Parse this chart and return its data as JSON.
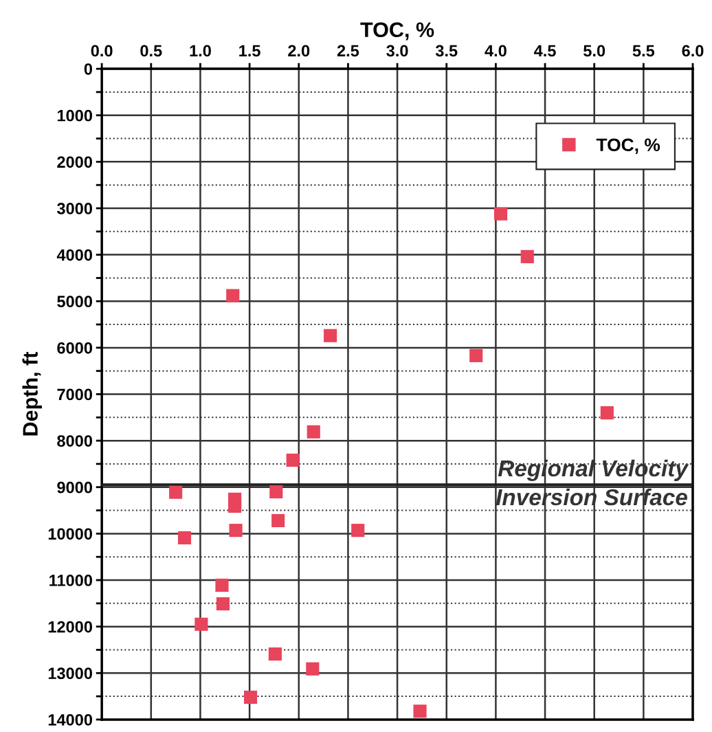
{
  "chart_data": {
    "type": "scatter",
    "xlabel": "TOC, %",
    "ylabel": "Depth, ft",
    "xlim": [
      0,
      6
    ],
    "xticks": [
      {
        "value": 0,
        "label": "0.0"
      },
      {
        "value": 0.5,
        "label": "0.5"
      },
      {
        "value": 1,
        "label": "1.0"
      },
      {
        "value": 1.5,
        "label": "1.5"
      },
      {
        "value": 2,
        "label": "2.0"
      },
      {
        "value": 2.5,
        "label": "2.5"
      },
      {
        "value": 3,
        "label": "3.0"
      },
      {
        "value": 3.5,
        "label": "3.5"
      },
      {
        "value": 4,
        "label": "4.0"
      },
      {
        "value": 4.5,
        "label": "4.5"
      },
      {
        "value": 5,
        "label": "5.0"
      },
      {
        "value": 5.5,
        "label": "5.5"
      },
      {
        "value": 6,
        "label": "6.0"
      }
    ],
    "ylim": [
      14000,
      0
    ],
    "yticks": [
      0,
      {
        "value": 500,
        "label": null
      },
      1000,
      {
        "value": 1500,
        "label": null
      },
      2000,
      {
        "value": 2500,
        "label": null
      },
      3000,
      {
        "value": 3500,
        "label": null
      },
      4000,
      {
        "value": 4500,
        "label": null
      },
      5000,
      {
        "value": 5500,
        "label": null
      },
      6000,
      {
        "value": 6500,
        "label": null
      },
      7000,
      {
        "value": 7500,
        "label": null
      },
      8000,
      {
        "value": 8500,
        "label": null
      },
      9000,
      {
        "value": 9500,
        "label": null
      },
      10000,
      {
        "value": 10500,
        "label": null
      },
      11000,
      {
        "value": 11500,
        "label": null
      },
      12000,
      {
        "value": 12500,
        "label": null
      },
      13000,
      {
        "value": 13500,
        "label": null
      },
      14000
    ],
    "grid": true,
    "legend": "top right",
    "marker": "square",
    "series": [
      {
        "name": "TOC, %",
        "color": "#e8445c",
        "x": [
          4.05,
          4.32,
          1.33,
          2.32,
          3.8,
          5.13,
          2.15,
          1.94,
          0.75,
          1.77,
          1.35,
          1.35,
          1.79,
          1.36,
          2.6,
          0.84,
          1.22,
          1.23,
          1.01,
          1.76,
          2.14,
          1.51,
          3.23
        ],
        "values": [
          3120,
          4040,
          4880,
          5740,
          6170,
          7400,
          7810,
          8420,
          9110,
          9100,
          9260,
          9410,
          9720,
          9930,
          9930,
          10090,
          11110,
          11510,
          11950,
          12590,
          12910,
          13520,
          13820
        ]
      }
    ],
    "ref_lines": [
      {
        "axis": "y",
        "value": 8950,
        "label": "Regional Velocity\nInversion Surface",
        "color": "#222222"
      }
    ]
  }
}
